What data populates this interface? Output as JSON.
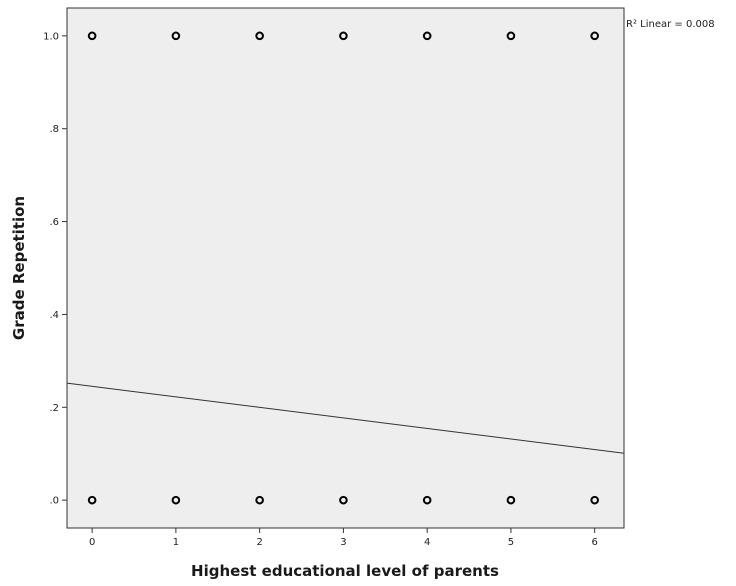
{
  "chart_data": {
    "type": "scatter",
    "title": "",
    "xlabel": "Highest educational level of parents",
    "ylabel": "Grade Repetition",
    "xlim": [
      -0.3,
      6.35
    ],
    "ylim": [
      -0.06,
      1.06
    ],
    "x_ticks": [
      0,
      1,
      2,
      3,
      4,
      5,
      6
    ],
    "x_tick_labels": [
      "0",
      "1",
      "2",
      "3",
      "4",
      "5",
      "6"
    ],
    "y_ticks": [
      0,
      0.2,
      0.4,
      0.6,
      0.8,
      1.0
    ],
    "y_tick_labels": [
      ".0",
      ".2",
      ".4",
      ".6",
      ".8",
      "1.0"
    ],
    "points": [
      {
        "x": 0,
        "y": 1
      },
      {
        "x": 1,
        "y": 1
      },
      {
        "x": 2,
        "y": 1
      },
      {
        "x": 3,
        "y": 1
      },
      {
        "x": 4,
        "y": 1
      },
      {
        "x": 5,
        "y": 1
      },
      {
        "x": 6,
        "y": 1
      },
      {
        "x": 0,
        "y": 0
      },
      {
        "x": 1,
        "y": 0
      },
      {
        "x": 2,
        "y": 0
      },
      {
        "x": 3,
        "y": 0
      },
      {
        "x": 4,
        "y": 0
      },
      {
        "x": 5,
        "y": 0
      },
      {
        "x": 6,
        "y": 0
      }
    ],
    "fit_line": {
      "x": [
        -0.3,
        6.35
      ],
      "y": [
        0.252,
        0.101
      ]
    },
    "annotation": "R² Linear = 0.008",
    "grid": false,
    "plot_background": "#eeeeee",
    "marker_color": "#000000"
  }
}
